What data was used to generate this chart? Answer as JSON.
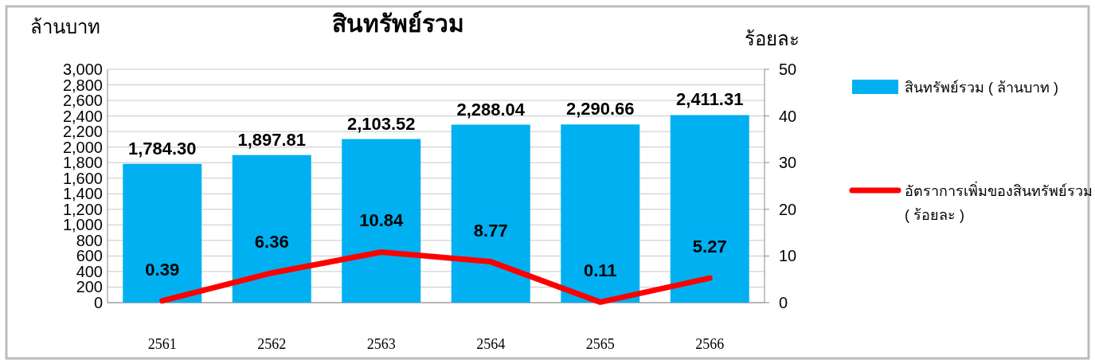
{
  "chart_data": {
    "type": "bar",
    "title": "สินทรัพย์รวม",
    "ylabel": "ล้านบาท",
    "y2label": "ร้อยละ",
    "categories": [
      "2561",
      "2562",
      "2563",
      "2564",
      "2565",
      "2566"
    ],
    "series": [
      {
        "name": "สินทรัพย์รวม ( ล้านบาท )",
        "color": "#00b0f0",
        "values": [
          1784.3,
          1897.81,
          2103.52,
          2288.04,
          2290.66,
          2411.31
        ],
        "value_labels": [
          "1,784.30",
          "1,897.81",
          "2,103.52",
          "2,288.04",
          "2,290.66",
          "2,411.31"
        ]
      },
      {
        "name": "อัตราการเพิ่มของสินทรัพย์รวม ( ร้อยละ )",
        "type": "line",
        "axis": "y2",
        "color": "#ff0000",
        "values": [
          0.39,
          6.36,
          10.84,
          8.77,
          0.11,
          5.27
        ],
        "value_labels": [
          "0.39",
          "6.36",
          "10.84",
          "8.77",
          "0.11",
          "5.27"
        ]
      }
    ],
    "ylim": [
      0,
      3000
    ],
    "yticks": [
      0,
      {
        "value": 200,
        "label": "200"
      },
      {
        "value": 400,
        "label": "400"
      },
      {
        "value": 600,
        "label": "600"
      },
      {
        "value": 800,
        "label": "800"
      },
      {
        "value": 1000,
        "label": "1,000"
      },
      {
        "value": 1200,
        "label": "1,200"
      },
      {
        "value": 1400,
        "label": "1,400"
      },
      {
        "value": 1600,
        "label": "1,600"
      },
      {
        "value": 1800,
        "label": "1,800"
      },
      {
        "value": 2000,
        "label": "2,000"
      },
      {
        "value": 2200,
        "label": "2,200"
      },
      {
        "value": 2400,
        "label": "2,400"
      },
      {
        "value": 2600,
        "label": "2,600"
      },
      {
        "value": 2800,
        "label": "2,800"
      },
      {
        "value": 3000,
        "label": "3,000"
      }
    ],
    "y2lim": [
      0,
      50
    ],
    "y2ticks": [
      0,
      10,
      20,
      30,
      40,
      50
    ],
    "grid": "y",
    "legend": "right",
    "marker": "none",
    "line_style": "solid"
  }
}
